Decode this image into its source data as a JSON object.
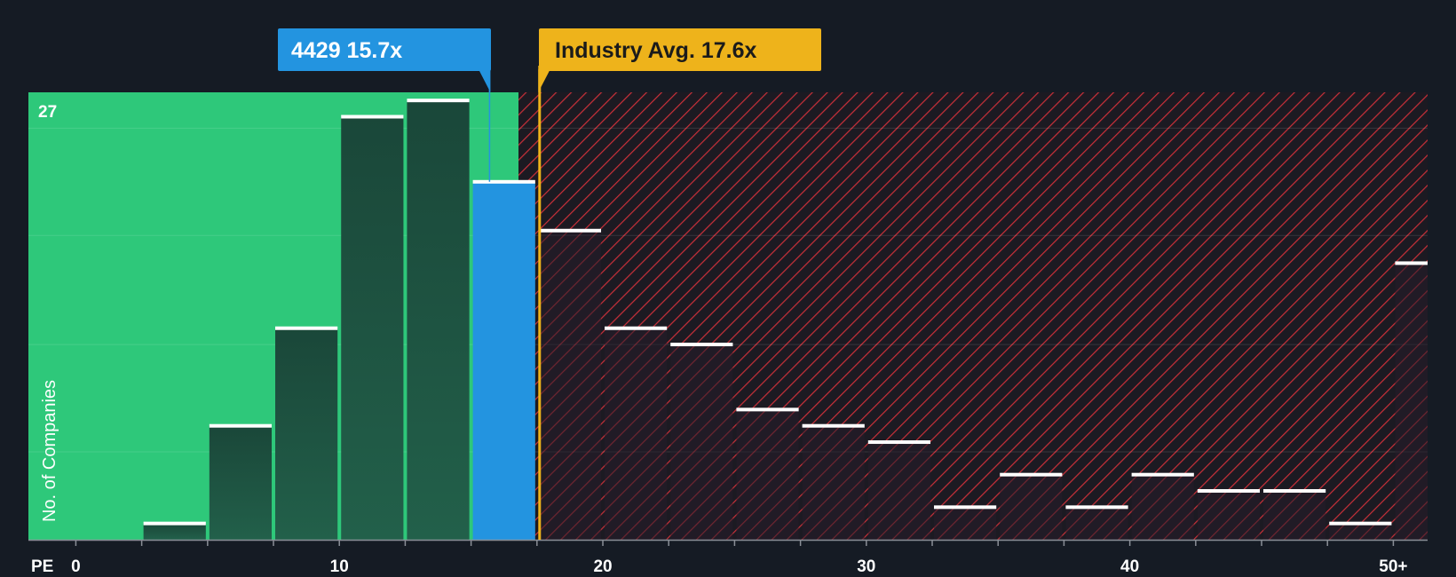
{
  "chart_data": {
    "type": "bar",
    "title": "",
    "xlabel": "PE",
    "ylabel": "No. of Companies",
    "x_ticks": [
      {
        "value": 0,
        "label": "0"
      },
      {
        "value": 10,
        "label": "10"
      },
      {
        "value": 20,
        "label": "20"
      },
      {
        "value": 30,
        "label": "30"
      },
      {
        "value": 40,
        "label": "40"
      },
      {
        "value": 50,
        "label": "50+"
      }
    ],
    "y_ticks": [
      {
        "value": 27,
        "label": "27"
      }
    ],
    "xlim": [
      -1.8,
      51.3
    ],
    "ylim": [
      0,
      27.5
    ],
    "bin_width": 2.5,
    "bins": [
      {
        "start": 2.5,
        "count": 1
      },
      {
        "start": 5.0,
        "count": 7
      },
      {
        "start": 7.5,
        "count": 13
      },
      {
        "start": 10.0,
        "count": 26
      },
      {
        "start": 12.5,
        "count": 27
      },
      {
        "start": 15.0,
        "count": 22,
        "highlighted": true
      },
      {
        "start": 17.5,
        "count": 19
      },
      {
        "start": 20.0,
        "count": 13
      },
      {
        "start": 22.5,
        "count": 12
      },
      {
        "start": 25.0,
        "count": 8
      },
      {
        "start": 27.5,
        "count": 7
      },
      {
        "start": 30.0,
        "count": 6
      },
      {
        "start": 32.5,
        "count": 2
      },
      {
        "start": 35.0,
        "count": 4
      },
      {
        "start": 37.5,
        "count": 2
      },
      {
        "start": 40.0,
        "count": 4
      },
      {
        "start": 42.5,
        "count": 3
      },
      {
        "start": 45.0,
        "count": 3
      },
      {
        "start": 47.5,
        "count": 1
      },
      {
        "start": 50.0,
        "count": 17
      }
    ],
    "company": {
      "ticker": "4429",
      "pe": 15.7,
      "label": "4429 15.7x"
    },
    "industry_avg": {
      "pe": 17.6,
      "label": "Industry Avg. 17.6x"
    },
    "fair_zone_end": 16.8
  },
  "colors": {
    "background": "#151b24",
    "fair_zone": "#2ec87a",
    "bar_dark": "#1a4739",
    "bar_highlight": "#2394e0",
    "bar_right": "#271f29",
    "hatch_line": "#c93039",
    "hatch_bg": "#1c1a22",
    "industry": "#eeb31b",
    "cap": "#ffffff"
  }
}
